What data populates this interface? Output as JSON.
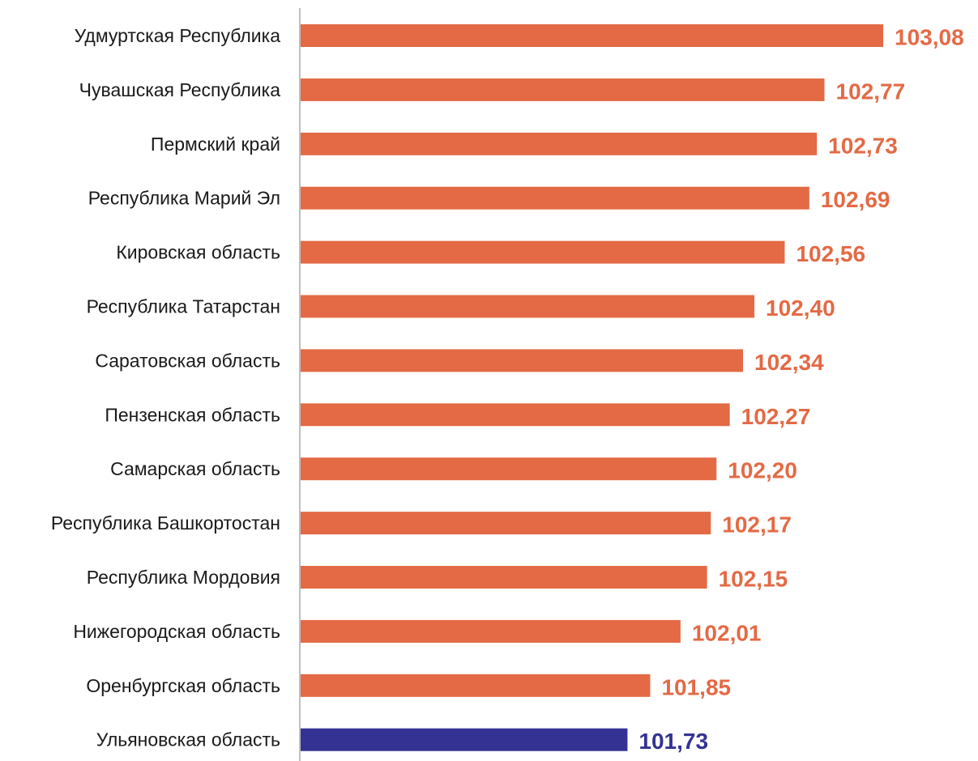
{
  "chart_data": {
    "type": "bar",
    "orientation": "horizontal",
    "categories": [
      "Удмуртская Республика",
      "Чувашская Республика",
      "Пермский край",
      "Республика Марий Эл",
      "Кировская область",
      "Республика Татарстан",
      "Саратовская область",
      "Пензенская область",
      "Самарская область",
      "Республика Башкортостан",
      "Республика Мордовия",
      "Нижегородская область",
      "Оренбургская область",
      "Ульяновская область"
    ],
    "values": [
      103.08,
      102.77,
      102.73,
      102.69,
      102.56,
      102.4,
      102.34,
      102.27,
      102.2,
      102.17,
      102.15,
      102.01,
      101.85,
      101.73
    ],
    "value_labels": [
      "103,08",
      "102,77",
      "102,73",
      "102,69",
      "102,56",
      "102,40",
      "102,34",
      "102,27",
      "102,20",
      "102,17",
      "102,15",
      "102,01",
      "101,85",
      "101,73"
    ],
    "colors": {
      "default": "#E36A45",
      "highlight": "#343393",
      "axis": "#BFBFBF"
    },
    "highlight_index": 13,
    "xlim": [
      100.0,
      103.08
    ],
    "grid": false,
    "title": "",
    "xlabel": "",
    "ylabel": ""
  }
}
